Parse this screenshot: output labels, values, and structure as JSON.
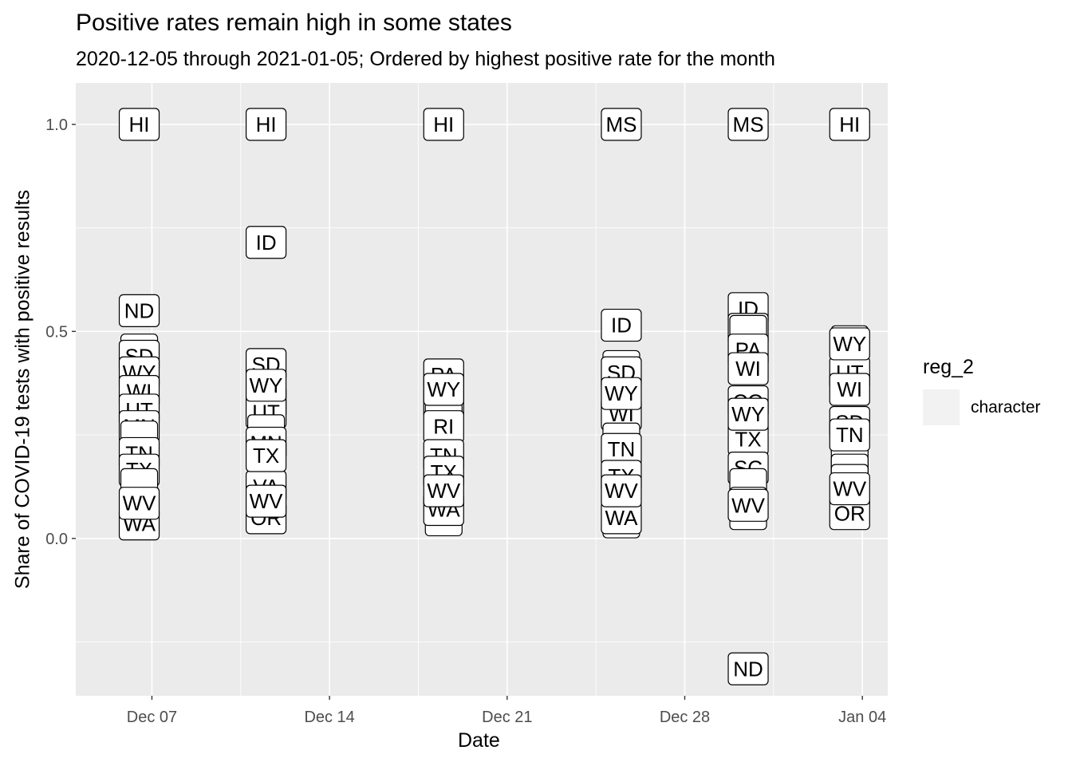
{
  "title": "Positive rates remain high in some states",
  "subtitle": "2020-12-05 through 2021-01-05; Ordered by highest positive rate for the month",
  "chart_data": {
    "type": "scatter",
    "mark": "label",
    "xlabel": "Date",
    "ylabel": "Share of COVID-19 tests with positive results",
    "xlim": [
      "2020-12-04",
      "2021-01-05"
    ],
    "ylim": [
      -0.38,
      1.1
    ],
    "x_ticks": [
      {
        "date": "2020-12-07",
        "label": "Dec 07"
      },
      {
        "date": "2020-12-14",
        "label": "Dec 14"
      },
      {
        "date": "2020-12-21",
        "label": "Dec 21"
      },
      {
        "date": "2020-12-28",
        "label": "Dec 28"
      },
      {
        "date": "2021-01-04",
        "label": "Jan 04"
      }
    ],
    "x_minor_dates": [
      "2020-12-10T12:00",
      "2020-12-17T12:00",
      "2020-12-24T12:00",
      "2020-12-31T12:00"
    ],
    "y_ticks": [
      {
        "value": 0.0,
        "label": "0.0"
      },
      {
        "value": 0.5,
        "label": "0.5"
      },
      {
        "value": 1.0,
        "label": "1.0"
      }
    ],
    "y_minor": [
      -0.25,
      0.25,
      0.75
    ],
    "grid": true,
    "legend": {
      "title": "reg_2",
      "position": "right",
      "entries": [
        "character"
      ]
    },
    "points": [
      {
        "x": "2020-12-06T12:00",
        "y": 1.0,
        "label": "HI"
      },
      {
        "x": "2020-12-06T12:00",
        "y": 0.55,
        "label": "ND"
      },
      {
        "x": "2020-12-06T12:00",
        "y": 0.455,
        "label": ""
      },
      {
        "x": "2020-12-06T12:00",
        "y": 0.44,
        "label": "SD"
      },
      {
        "x": "2020-12-06T12:00",
        "y": 0.4,
        "label": "WY"
      },
      {
        "x": "2020-12-06T12:00",
        "y": 0.355,
        "label": "WI"
      },
      {
        "x": "2020-12-06T12:00",
        "y": 0.31,
        "label": "UT"
      },
      {
        "x": "2020-12-06T12:00",
        "y": 0.27,
        "label": "MN"
      },
      {
        "x": "2020-12-06T12:00",
        "y": 0.245,
        "label": ""
      },
      {
        "x": "2020-12-06T12:00",
        "y": 0.205,
        "label": "TN"
      },
      {
        "x": "2020-12-06T12:00",
        "y": 0.165,
        "label": "TX"
      },
      {
        "x": "2020-12-06T12:00",
        "y": 0.13,
        "label": ""
      },
      {
        "x": "2020-12-06T12:00",
        "y": 0.035,
        "label": "WA"
      },
      {
        "x": "2020-12-06T12:00",
        "y": 0.085,
        "label": "WV"
      },
      {
        "x": "2020-12-11T12:00",
        "y": 1.0,
        "label": "HI"
      },
      {
        "x": "2020-12-11T12:00",
        "y": 0.715,
        "label": "ID"
      },
      {
        "x": "2020-12-11T12:00",
        "y": 0.42,
        "label": "SD"
      },
      {
        "x": "2020-12-11T12:00",
        "y": 0.33,
        "label": "WI"
      },
      {
        "x": "2020-12-11T12:00",
        "y": 0.305,
        "label": "UT"
      },
      {
        "x": "2020-12-11T12:00",
        "y": 0.26,
        "label": ""
      },
      {
        "x": "2020-12-11T12:00",
        "y": 0.23,
        "label": "MN"
      },
      {
        "x": "2020-12-11T12:00",
        "y": 0.16,
        "label": ""
      },
      {
        "x": "2020-12-11T12:00",
        "y": 0.125,
        "label": "VA"
      },
      {
        "x": "2020-12-11T12:00",
        "y": 0.05,
        "label": "OR"
      },
      {
        "x": "2020-12-11T12:00",
        "y": 0.2,
        "label": "TX"
      },
      {
        "x": "2020-12-11T12:00",
        "y": 0.09,
        "label": "WV"
      },
      {
        "x": "2020-12-11T12:00",
        "y": 0.37,
        "label": "WY"
      },
      {
        "x": "2020-12-18T12:00",
        "y": 1.0,
        "label": "HI"
      },
      {
        "x": "2020-12-18T12:00",
        "y": 0.395,
        "label": "PA"
      },
      {
        "x": "2020-12-18T12:00",
        "y": 0.33,
        "label": "WI"
      },
      {
        "x": "2020-12-18T12:00",
        "y": 0.29,
        "label": ""
      },
      {
        "x": "2020-12-18T12:00",
        "y": 0.27,
        "label": "RI"
      },
      {
        "x": "2020-12-18T12:00",
        "y": 0.2,
        "label": "TN"
      },
      {
        "x": "2020-12-18T12:00",
        "y": 0.16,
        "label": "TX"
      },
      {
        "x": "2020-12-18T12:00",
        "y": 0.065,
        "label": ""
      },
      {
        "x": "2020-12-18T12:00",
        "y": 0.045,
        "label": ""
      },
      {
        "x": "2020-12-18T12:00",
        "y": 0.07,
        "label": "WA"
      },
      {
        "x": "2020-12-18T12:00",
        "y": 0.115,
        "label": "WV"
      },
      {
        "x": "2020-12-18T12:00",
        "y": 0.36,
        "label": "WY"
      },
      {
        "x": "2020-12-25T12:00",
        "y": 1.0,
        "label": "MS"
      },
      {
        "x": "2020-12-25T12:00",
        "y": 0.515,
        "label": "ID"
      },
      {
        "x": "2020-12-25T12:00",
        "y": 0.415,
        "label": ""
      },
      {
        "x": "2020-12-25T12:00",
        "y": 0.4,
        "label": "SD"
      },
      {
        "x": "2020-12-25T12:00",
        "y": 0.3,
        "label": "WI"
      },
      {
        "x": "2020-12-25T12:00",
        "y": 0.24,
        "label": ""
      },
      {
        "x": "2020-12-25T12:00",
        "y": 0.215,
        "label": "TN"
      },
      {
        "x": "2020-12-25T12:00",
        "y": 0.15,
        "label": "TX"
      },
      {
        "x": "2020-12-25T12:00",
        "y": 0.055,
        "label": ""
      },
      {
        "x": "2020-12-25T12:00",
        "y": 0.04,
        "label": ""
      },
      {
        "x": "2020-12-25T12:00",
        "y": 0.05,
        "label": "WA"
      },
      {
        "x": "2020-12-25T12:00",
        "y": 0.115,
        "label": "WV"
      },
      {
        "x": "2020-12-25T12:00",
        "y": 0.35,
        "label": "WY"
      },
      {
        "x": "2020-12-30T12:00",
        "y": 1.0,
        "label": "MS"
      },
      {
        "x": "2020-12-30T12:00",
        "y": 0.555,
        "label": "ID"
      },
      {
        "x": "2020-12-30T12:00",
        "y": 0.505,
        "label": "MO"
      },
      {
        "x": "2020-12-30T12:00",
        "y": 0.5,
        "label": ""
      },
      {
        "x": "2020-12-30T12:00",
        "y": 0.455,
        "label": "PA"
      },
      {
        "x": "2020-12-30T12:00",
        "y": 0.41,
        "label": "WI"
      },
      {
        "x": "2020-12-30T12:00",
        "y": 0.33,
        "label": "CO"
      },
      {
        "x": "2020-12-30T12:00",
        "y": 0.24,
        "label": "TX"
      },
      {
        "x": "2020-12-30T12:00",
        "y": 0.17,
        "label": "SC"
      },
      {
        "x": "2020-12-30T12:00",
        "y": 0.13,
        "label": ""
      },
      {
        "x": "2020-12-30T12:00",
        "y": 0.085,
        "label": ""
      },
      {
        "x": "2020-12-30T12:00",
        "y": 0.06,
        "label": ""
      },
      {
        "x": "2020-12-30T12:00",
        "y": -0.315,
        "label": "ND"
      },
      {
        "x": "2020-12-30T12:00",
        "y": 0.3,
        "label": "WY"
      },
      {
        "x": "2020-12-30T12:00",
        "y": 0.08,
        "label": "WV"
      },
      {
        "x": "2021-01-03T12:00",
        "y": 1.0,
        "label": "HI"
      },
      {
        "x": "2021-01-03T12:00",
        "y": 0.475,
        "label": ""
      },
      {
        "x": "2021-01-03T12:00",
        "y": 0.4,
        "label": "UT"
      },
      {
        "x": "2021-01-03T12:00",
        "y": 0.36,
        "label": "WI"
      },
      {
        "x": "2021-01-03T12:00",
        "y": 0.28,
        "label": "SD"
      },
      {
        "x": "2021-01-03T12:00",
        "y": 0.24,
        "label": ""
      },
      {
        "x": "2021-01-03T12:00",
        "y": 0.19,
        "label": ""
      },
      {
        "x": "2021-01-03T12:00",
        "y": 0.165,
        "label": ""
      },
      {
        "x": "2021-01-03T12:00",
        "y": 0.14,
        "label": ""
      },
      {
        "x": "2021-01-03T12:00",
        "y": 0.11,
        "label": ""
      },
      {
        "x": "2021-01-03T12:00",
        "y": 0.06,
        "label": "OR"
      },
      {
        "x": "2021-01-03T12:00",
        "y": 0.25,
        "label": "TN"
      },
      {
        "x": "2021-01-03T12:00",
        "y": 0.12,
        "label": "WV"
      },
      {
        "x": "2021-01-03T12:00",
        "y": 0.47,
        "label": "WY"
      }
    ]
  }
}
